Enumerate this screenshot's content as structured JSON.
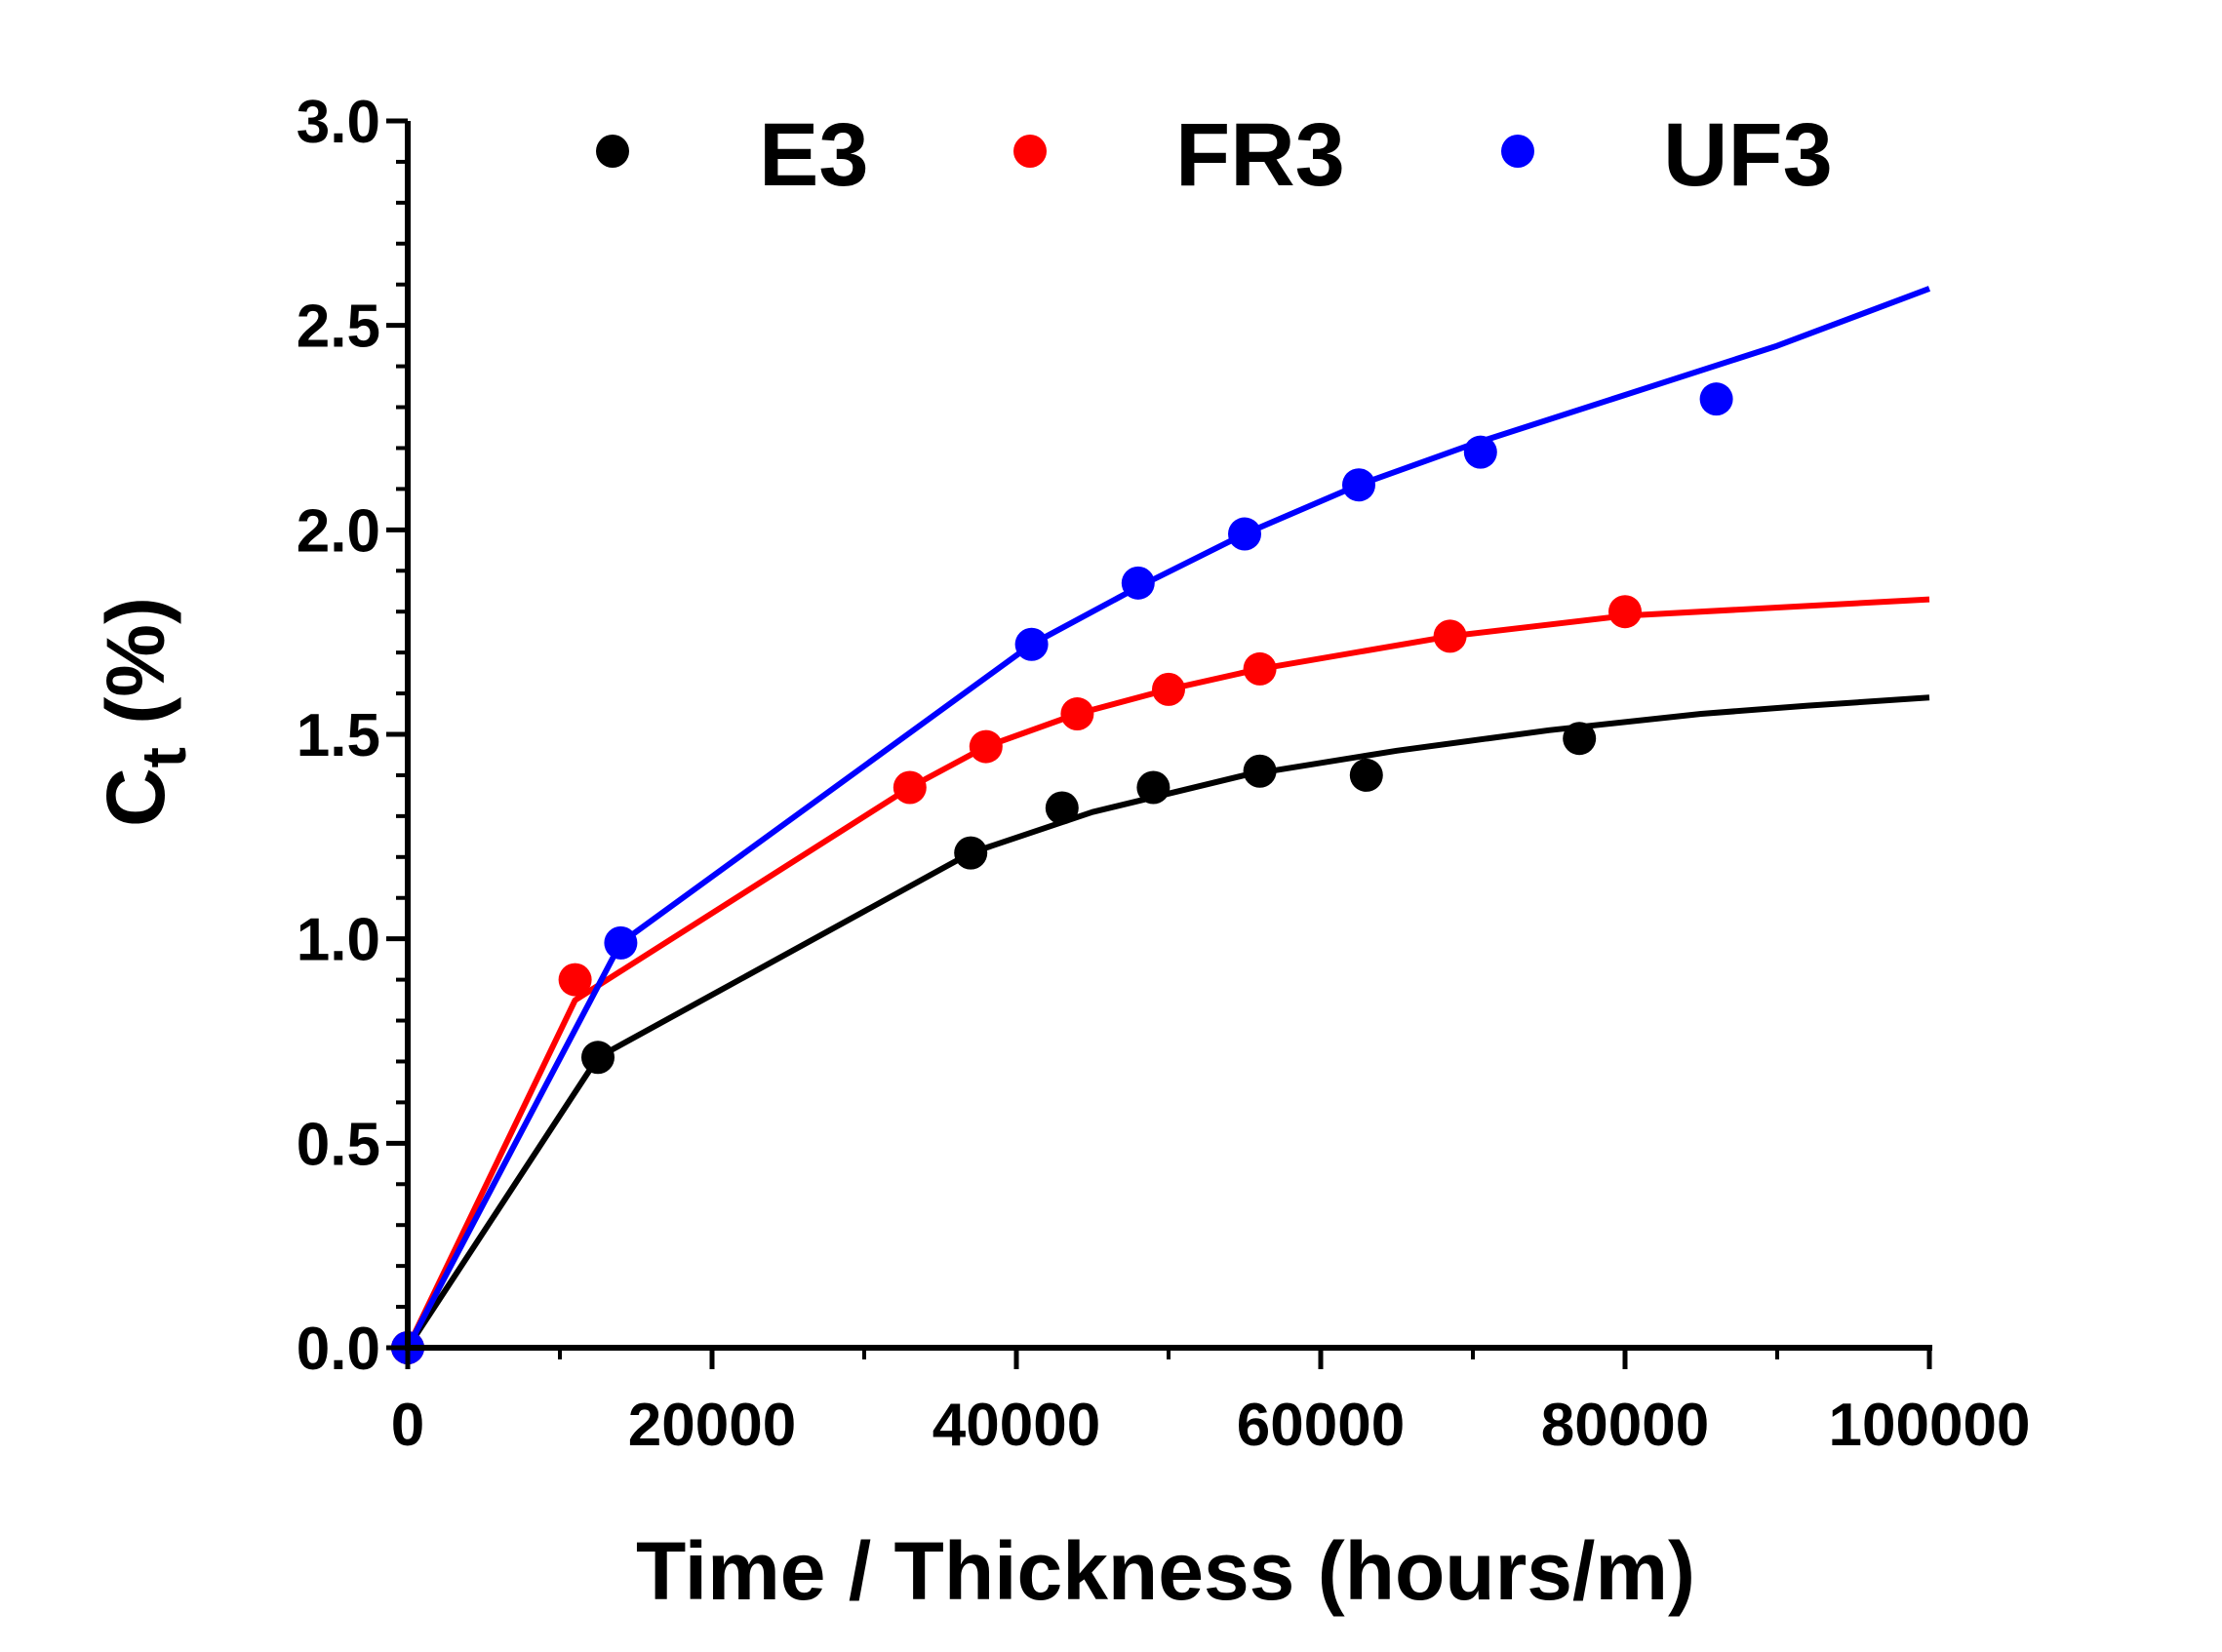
{
  "chart_data": {
    "type": "scatter",
    "title": "",
    "xlabel": "Time / Thickness (hours/m)",
    "ylabel": "C",
    "ylabel_subscript": "t",
    "ylabel_suffix": " (%)",
    "xlim": [
      0,
      100000
    ],
    "ylim": [
      0,
      3.0
    ],
    "xticks": [
      0,
      20000,
      40000,
      60000,
      80000,
      100000
    ],
    "xtick_labels": [
      "0",
      "20000",
      "40000",
      "60000",
      "80000",
      "100000"
    ],
    "yticks": [
      0,
      0.5,
      1.0,
      1.5,
      2.0,
      2.5,
      3.0
    ],
    "ytick_labels": [
      "0.0",
      "0.5",
      "1.0",
      "1.5",
      "2.0",
      "2.5",
      "3.0"
    ],
    "legend_position": "top",
    "series": [
      {
        "name": "E3",
        "color": "#000000",
        "points": [
          [
            0,
            0.0
          ],
          [
            12500,
            0.71
          ],
          [
            37000,
            1.21
          ],
          [
            43000,
            1.32
          ],
          [
            49000,
            1.37
          ],
          [
            56000,
            1.41
          ],
          [
            63000,
            1.4
          ],
          [
            77000,
            1.49
          ]
        ],
        "fit": [
          [
            0,
            0.0
          ],
          [
            12500,
            0.71
          ],
          [
            37000,
            1.21
          ],
          [
            45000,
            1.31
          ],
          [
            55000,
            1.4
          ],
          [
            65000,
            1.46
          ],
          [
            75000,
            1.51
          ],
          [
            85000,
            1.55
          ],
          [
            92000,
            1.57
          ],
          [
            100000,
            1.59
          ]
        ]
      },
      {
        "name": "FR3",
        "color": "#ff0000",
        "points": [
          [
            0,
            0.0
          ],
          [
            11000,
            0.9
          ],
          [
            33000,
            1.37
          ],
          [
            38000,
            1.47
          ],
          [
            44000,
            1.55
          ],
          [
            50000,
            1.61
          ],
          [
            56000,
            1.66
          ],
          [
            68500,
            1.74
          ],
          [
            80000,
            1.8
          ]
        ],
        "fit": [
          [
            0,
            0.0
          ],
          [
            11000,
            0.85
          ],
          [
            33000,
            1.37
          ],
          [
            38000,
            1.47
          ],
          [
            44000,
            1.55
          ],
          [
            50000,
            1.61
          ],
          [
            56000,
            1.66
          ],
          [
            68500,
            1.74
          ],
          [
            80000,
            1.79
          ],
          [
            90000,
            1.81
          ],
          [
            100000,
            1.83
          ]
        ]
      },
      {
        "name": "UF3",
        "color": "#0000ff",
        "points": [
          [
            0,
            0.0
          ],
          [
            14000,
            0.99
          ],
          [
            41000,
            1.72
          ],
          [
            48000,
            1.87
          ],
          [
            55000,
            1.99
          ],
          [
            62500,
            2.11
          ],
          [
            70500,
            2.19
          ],
          [
            86000,
            2.32
          ]
        ],
        "fit": [
          [
            0,
            0.0
          ],
          [
            14000,
            0.99
          ],
          [
            41000,
            1.72
          ],
          [
            48000,
            1.86
          ],
          [
            55000,
            1.99
          ],
          [
            62500,
            2.11
          ],
          [
            70000,
            2.21
          ],
          [
            80000,
            2.33
          ],
          [
            90000,
            2.45
          ],
          [
            100000,
            2.59
          ]
        ]
      }
    ]
  }
}
